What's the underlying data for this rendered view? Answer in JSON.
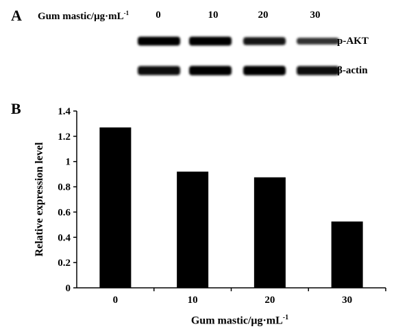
{
  "panel_a": {
    "label": "A",
    "header_text": "Gum mastic/μg·mL",
    "header_superscript": "-1",
    "doses": [
      "0",
      "10",
      "20",
      "30"
    ],
    "rows": [
      {
        "label": "p-AKT",
        "band_intensity": [
          1.0,
          1.0,
          0.75,
          0.45
        ]
      },
      {
        "label": "β-actin",
        "band_intensity": [
          0.9,
          0.95,
          0.95,
          0.9
        ]
      }
    ]
  },
  "panel_b": {
    "label": "B",
    "xlabel_text": "Gum mastic/μg·mL",
    "xlabel_superscript": "-1",
    "ylabel": "Relative expression level"
  },
  "chart_data": {
    "type": "bar",
    "categories": [
      "0",
      "10",
      "20",
      "30"
    ],
    "values": [
      1.27,
      0.92,
      0.875,
      0.525
    ],
    "xlabel": "Gum mastic/μg·mL-1",
    "ylabel": "Relative expression level",
    "ylim": [
      0,
      1.4
    ],
    "yticks": [
      "0",
      "0.2",
      "0.4",
      "0.6",
      "0.8",
      "1",
      "1.2",
      "1.4"
    ],
    "bar_color": "#000000",
    "grid": false,
    "legend": "none"
  }
}
